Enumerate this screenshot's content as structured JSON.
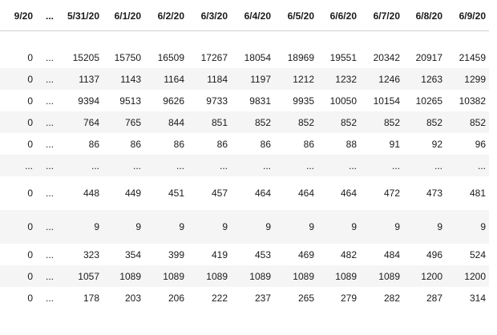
{
  "table": {
    "columns": [
      "9/20",
      "...",
      "5/31/20",
      "6/1/20",
      "6/2/20",
      "6/3/20",
      "6/4/20",
      "6/5/20",
      "6/6/20",
      "6/7/20",
      "6/8/20",
      "6/9/20"
    ],
    "rows": [
      [
        "0",
        "...",
        "15205",
        "15750",
        "16509",
        "17267",
        "18054",
        "18969",
        "19551",
        "20342",
        "20917",
        "21459"
      ],
      [
        "0",
        "...",
        "1137",
        "1143",
        "1164",
        "1184",
        "1197",
        "1212",
        "1232",
        "1246",
        "1263",
        "1299"
      ],
      [
        "0",
        "...",
        "9394",
        "9513",
        "9626",
        "9733",
        "9831",
        "9935",
        "10050",
        "10154",
        "10265",
        "10382"
      ],
      [
        "0",
        "...",
        "764",
        "765",
        "844",
        "851",
        "852",
        "852",
        "852",
        "852",
        "852",
        "852"
      ],
      [
        "0",
        "...",
        "86",
        "86",
        "86",
        "86",
        "86",
        "86",
        "88",
        "91",
        "92",
        "96"
      ],
      [
        "...",
        "...",
        "...",
        "...",
        "...",
        "...",
        "...",
        "...",
        "...",
        "...",
        "...",
        "..."
      ],
      [
        "0",
        "...",
        "448",
        "449",
        "451",
        "457",
        "464",
        "464",
        "464",
        "472",
        "473",
        "481"
      ],
      [
        "0",
        "...",
        "9",
        "9",
        "9",
        "9",
        "9",
        "9",
        "9",
        "9",
        "9",
        "9"
      ],
      [
        "0",
        "...",
        "323",
        "354",
        "399",
        "419",
        "453",
        "469",
        "482",
        "484",
        "496",
        "524"
      ],
      [
        "0",
        "...",
        "1057",
        "1089",
        "1089",
        "1089",
        "1089",
        "1089",
        "1089",
        "1089",
        "1200",
        "1200"
      ],
      [
        "0",
        "...",
        "178",
        "203",
        "206",
        "222",
        "237",
        "265",
        "279",
        "282",
        "287",
        "314"
      ]
    ]
  }
}
